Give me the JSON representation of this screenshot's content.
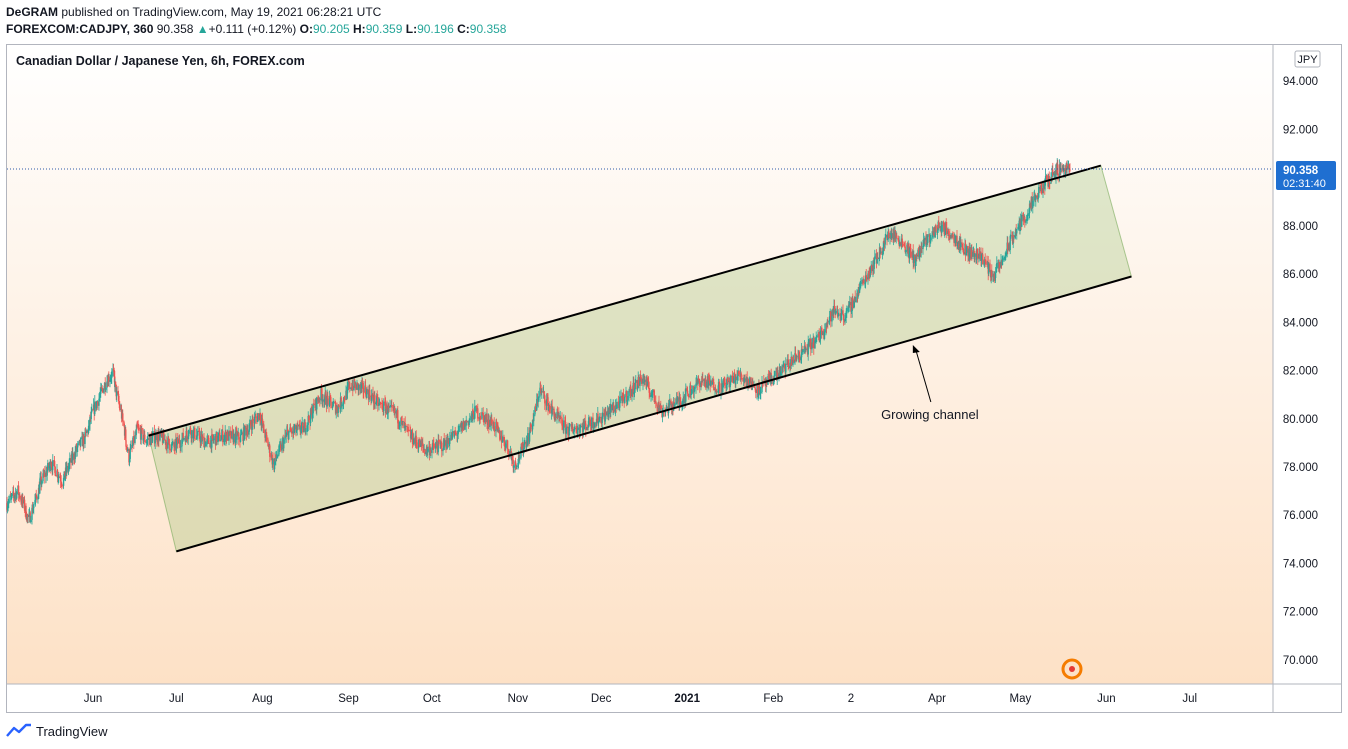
{
  "header": {
    "author": "DeGRAM",
    "published_text": "published on TradingView.com, May 19, 2021 06:28:21 UTC",
    "symbol": "FOREXCOM:CADJPY, 360",
    "last": "90.358",
    "change_arrow": "▲",
    "change": "+0.111 (+0.12%)",
    "o_label": "O:",
    "o_value": "90.205",
    "h_label": "H:",
    "h_value": "90.359",
    "l_label": "L:",
    "l_value": "90.196",
    "c_label": "C:",
    "c_value": "90.358"
  },
  "footer": {
    "brand": "TradingView"
  },
  "chart_data": {
    "type": "candlestick",
    "title": "Canadian Dollar / Japanese Yen, 6h, FOREX.com",
    "currency": "JPY",
    "ylim": [
      69,
      95.5
    ],
    "y_ticks": [
      70,
      72,
      74,
      76,
      78,
      80,
      82,
      84,
      86,
      88,
      90,
      92,
      94
    ],
    "y_tick_labels": [
      "70.000",
      "72.000",
      "74.000",
      "76.000",
      "78.000",
      "80.000",
      "82.000",
      "84.000",
      "86.000",
      "88.000",
      "90.000",
      "92.000",
      "94.000"
    ],
    "x_range": [
      "2020-05-01",
      "2021-07-31"
    ],
    "x_ticks": [
      {
        "date": "2020-06-01",
        "label": "Jun",
        "bold": false
      },
      {
        "date": "2020-07-01",
        "label": "Jul",
        "bold": false
      },
      {
        "date": "2020-08-01",
        "label": "Aug",
        "bold": false
      },
      {
        "date": "2020-09-01",
        "label": "Sep",
        "bold": false
      },
      {
        "date": "2020-10-01",
        "label": "Oct",
        "bold": false
      },
      {
        "date": "2020-11-01",
        "label": "Nov",
        "bold": false
      },
      {
        "date": "2020-12-01",
        "label": "Dec",
        "bold": false
      },
      {
        "date": "2021-01-01",
        "label": "2021",
        "bold": true
      },
      {
        "date": "2021-02-01",
        "label": "Feb",
        "bold": false
      },
      {
        "date": "2021-03-01",
        "label": "2",
        "bold": false
      },
      {
        "date": "2021-04-01",
        "label": "Apr",
        "bold": false
      },
      {
        "date": "2021-05-01",
        "label": "May",
        "bold": false
      },
      {
        "date": "2021-06-01",
        "label": "Jun",
        "bold": false
      },
      {
        "date": "2021-07-01",
        "label": "Jul",
        "bold": false
      }
    ],
    "price_path": [
      [
        "2020-05-01",
        76.5
      ],
      [
        "2020-05-05",
        77.0
      ],
      [
        "2020-05-09",
        75.8
      ],
      [
        "2020-05-13",
        77.3
      ],
      [
        "2020-05-17",
        78.2
      ],
      [
        "2020-05-21",
        77.4
      ],
      [
        "2020-05-25",
        78.5
      ],
      [
        "2020-05-29",
        79.2
      ],
      [
        "2020-06-02",
        80.6
      ],
      [
        "2020-06-06",
        81.6
      ],
      [
        "2020-06-08",
        81.9
      ],
      [
        "2020-06-11",
        80.3
      ],
      [
        "2020-06-14",
        78.4
      ],
      [
        "2020-06-17",
        79.6
      ],
      [
        "2020-06-20",
        79.1
      ],
      [
        "2020-06-25",
        79.3
      ],
      [
        "2020-06-30",
        78.8
      ],
      [
        "2020-07-06",
        79.5
      ],
      [
        "2020-07-12",
        79.0
      ],
      [
        "2020-07-18",
        79.3
      ],
      [
        "2020-07-24",
        79.2
      ],
      [
        "2020-07-31",
        80.2
      ],
      [
        "2020-08-05",
        78.1
      ],
      [
        "2020-08-10",
        79.4
      ],
      [
        "2020-08-16",
        79.6
      ],
      [
        "2020-08-22",
        81.0
      ],
      [
        "2020-08-28",
        80.4
      ],
      [
        "2020-09-02",
        81.4
      ],
      [
        "2020-09-07",
        81.2
      ],
      [
        "2020-09-12",
        80.6
      ],
      [
        "2020-09-18",
        80.2
      ],
      [
        "2020-09-23",
        79.3
      ],
      [
        "2020-09-29",
        78.7
      ],
      [
        "2020-10-05",
        78.9
      ],
      [
        "2020-10-11",
        79.5
      ],
      [
        "2020-10-17",
        80.3
      ],
      [
        "2020-10-23",
        79.8
      ],
      [
        "2020-10-28",
        78.9
      ],
      [
        "2020-10-31",
        78.1
      ],
      [
        "2020-11-05",
        79.3
      ],
      [
        "2020-11-09",
        81.2
      ],
      [
        "2020-11-14",
        80.2
      ],
      [
        "2020-11-19",
        79.5
      ],
      [
        "2020-11-25",
        79.7
      ],
      [
        "2020-12-02",
        80.1
      ],
      [
        "2020-12-09",
        80.8
      ],
      [
        "2020-12-16",
        81.7
      ],
      [
        "2020-12-23",
        80.3
      ],
      [
        "2020-12-30",
        80.8
      ],
      [
        "2021-01-06",
        81.6
      ],
      [
        "2021-01-13",
        81.3
      ],
      [
        "2021-01-20",
        81.8
      ],
      [
        "2021-01-27",
        81.2
      ],
      [
        "2021-02-03",
        81.9
      ],
      [
        "2021-02-10",
        82.6
      ],
      [
        "2021-02-17",
        83.3
      ],
      [
        "2021-02-23",
        84.5
      ],
      [
        "2021-02-27",
        84.2
      ],
      [
        "2021-03-05",
        85.6
      ],
      [
        "2021-03-10",
        86.6
      ],
      [
        "2021-03-15",
        87.7
      ],
      [
        "2021-03-19",
        87.4
      ],
      [
        "2021-03-24",
        86.6
      ],
      [
        "2021-03-29",
        87.5
      ],
      [
        "2021-04-02",
        88.0
      ],
      [
        "2021-04-06",
        87.7
      ],
      [
        "2021-04-12",
        86.9
      ],
      [
        "2021-04-17",
        86.8
      ],
      [
        "2021-04-21",
        85.9
      ],
      [
        "2021-04-24",
        86.4
      ],
      [
        "2021-04-29",
        87.7
      ],
      [
        "2021-05-04",
        88.6
      ],
      [
        "2021-05-09",
        89.6
      ],
      [
        "2021-05-13",
        90.2
      ],
      [
        "2021-05-16",
        90.4
      ],
      [
        "2021-05-19",
        90.36
      ]
    ],
    "last_price": "90.358",
    "countdown": "02:31:40",
    "channel": {
      "upper": [
        [
          "2020-06-21",
          79.3
        ],
        [
          "2021-05-30",
          90.5
        ]
      ],
      "lower": [
        [
          "2020-07-01",
          74.5
        ],
        [
          "2021-06-10",
          85.9
        ]
      ]
    },
    "annotation": "Growing channel"
  }
}
